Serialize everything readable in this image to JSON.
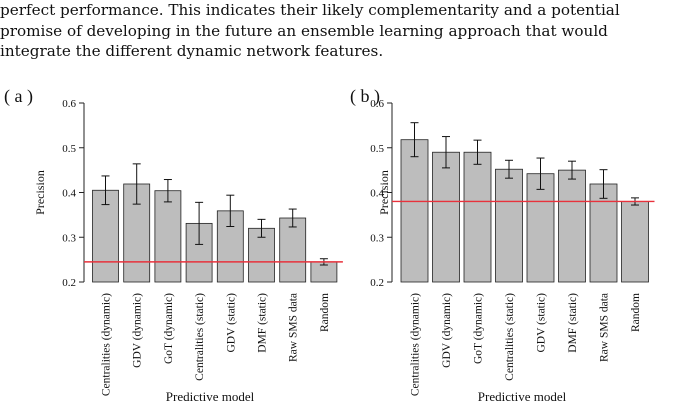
{
  "intro": {
    "lines": [
      "perfect performance. This indicates their likely complementarity and a potential",
      "promise of developing in the future an ensemble learning approach that would",
      "integrate the different dynamic network features."
    ]
  },
  "colors": {
    "bar": "#bdbdbd",
    "bar_stroke": "#222222",
    "baseline": "#e8323c",
    "axis": "#222222"
  },
  "chart_data": [
    {
      "type": "bar",
      "panel_label": "( a )",
      "ylabel": "Precision",
      "xlabel": "Predictive model",
      "ylim": [
        0.2,
        0.6
      ],
      "yticks": [
        "0.2",
        "0.3",
        "0.4",
        "0.5",
        "0.6"
      ],
      "categories": [
        "Centralities (dynamic)",
        "GDV (dynamic)",
        "GoT (dynamic)",
        "Centralities (static)",
        "GDV (static)",
        "DMF (static)",
        "Raw SMS data",
        "Random"
      ],
      "values": [
        0.405,
        0.419,
        0.404,
        0.331,
        0.359,
        0.32,
        0.343,
        0.245
      ],
      "error": [
        0.032,
        0.045,
        0.025,
        0.047,
        0.035,
        0.02,
        0.02,
        0.007
      ],
      "baseline": 0.245
    },
    {
      "type": "bar",
      "panel_label": "( b )",
      "ylabel": "Precision",
      "xlabel": "Predictive model",
      "ylim": [
        0.2,
        0.6
      ],
      "yticks": [
        "0.2",
        "0.3",
        "0.4",
        "0.5",
        "0.6"
      ],
      "categories": [
        "Centralities (dynamic)",
        "GDV (dynamic)",
        "GoT (dynamic)",
        "Centralities (static)",
        "GDV (static)",
        "DMF (static)",
        "Raw SMS data",
        "Random"
      ],
      "values": [
        0.518,
        0.49,
        0.49,
        0.452,
        0.442,
        0.45,
        0.419,
        0.38
      ],
      "error": [
        0.038,
        0.035,
        0.027,
        0.02,
        0.035,
        0.02,
        0.032,
        0.008
      ],
      "baseline": 0.38
    }
  ]
}
